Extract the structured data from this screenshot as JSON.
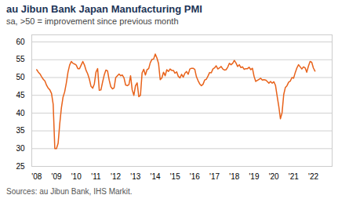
{
  "chart_data": {
    "type": "line",
    "title": "au Jibun Bank Japan Manufacturing PMI",
    "subtitle": "sa, >50 = improvement since previous month",
    "source": "Sources: au Jibun Bank, IHS Markit.",
    "color": "#E8621A",
    "grid": true,
    "xlim": [
      2007.75,
      2022.95
    ],
    "xticks": [
      {
        "value": 2008,
        "label": "'08"
      },
      {
        "value": 2009,
        "label": "'09"
      },
      {
        "value": 2010,
        "label": "'10"
      },
      {
        "value": 2011,
        "label": "'11"
      },
      {
        "value": 2012,
        "label": "'12"
      },
      {
        "value": 2013,
        "label": "'13"
      },
      {
        "value": 2014,
        "label": "'14"
      },
      {
        "value": 2015,
        "label": "'15"
      },
      {
        "value": 2016,
        "label": "'16"
      },
      {
        "value": 2017,
        "label": "'17"
      },
      {
        "value": 2018,
        "label": "'18"
      },
      {
        "value": 2019,
        "label": "'19"
      },
      {
        "value": 2020,
        "label": "'20"
      },
      {
        "value": 2021,
        "label": "'21"
      },
      {
        "value": 2022,
        "label": "'22"
      }
    ],
    "ylim": [
      25,
      62
    ],
    "yticks": [
      25,
      30,
      35,
      40,
      45,
      50,
      55,
      60
    ],
    "x": [
      2008,
      2008.0833333333333,
      2008.1666666666667,
      2008.25,
      2008.3333333333333,
      2008.4166666666667,
      2008.5,
      2008.5833333333333,
      2008.6666666666667,
      2008.75,
      2008.8333333333333,
      2008.9166666666667,
      2009,
      2009.0833333333333,
      2009.1666666666667,
      2009.25,
      2009.3333333333333,
      2009.4166666666667,
      2009.5,
      2009.5833333333333,
      2009.6666666666667,
      2009.75,
      2009.8333333333333,
      2009.9166666666667,
      2010,
      2010.0833333333333,
      2010.1666666666667,
      2010.25,
      2010.3333333333333,
      2010.4166666666667,
      2010.5,
      2010.5833333333333,
      2010.6666666666667,
      2010.75,
      2010.8333333333333,
      2010.9166666666667,
      2011,
      2011.0833333333333,
      2011.1666666666667,
      2011.25,
      2011.3333333333333,
      2011.4166666666667,
      2011.5,
      2011.5833333333333,
      2011.6666666666667,
      2011.75,
      2011.8333333333333,
      2011.9166666666667,
      2012,
      2012.0833333333333,
      2012.1666666666667,
      2012.25,
      2012.3333333333333,
      2012.4166666666667,
      2012.5,
      2012.5833333333333,
      2012.6666666666667,
      2012.75,
      2012.8333333333333,
      2012.9166666666667,
      2013,
      2013.0833333333333,
      2013.1666666666667,
      2013.25,
      2013.3333333333333,
      2013.4166666666667,
      2013.5,
      2013.5833333333333,
      2013.6666666666667,
      2013.75,
      2013.8333333333333,
      2013.9166666666667,
      2014,
      2014.0833333333333,
      2014.1666666666667,
      2014.25,
      2014.3333333333333,
      2014.4166666666667,
      2014.5,
      2014.5833333333333,
      2014.6666666666667,
      2014.75,
      2014.8333333333333,
      2014.9166666666667,
      2015,
      2015.0833333333333,
      2015.1666666666667,
      2015.25,
      2015.3333333333333,
      2015.4166666666667,
      2015.5,
      2015.5833333333333,
      2015.6666666666667,
      2015.75,
      2015.8333333333333,
      2015.9166666666667,
      2016,
      2016.0833333333333,
      2016.1666666666667,
      2016.25,
      2016.3333333333333,
      2016.4166666666667,
      2016.5,
      2016.5833333333333,
      2016.6666666666667,
      2016.75,
      2016.8333333333333,
      2016.9166666666667,
      2017,
      2017.0833333333333,
      2017.1666666666667,
      2017.25,
      2017.3333333333333,
      2017.4166666666667,
      2017.5,
      2017.5833333333333,
      2017.6666666666667,
      2017.75,
      2017.8333333333333,
      2017.9166666666667,
      2018,
      2018.0833333333333,
      2018.1666666666667,
      2018.25,
      2018.3333333333333,
      2018.4166666666667,
      2018.5,
      2018.5833333333333,
      2018.6666666666667,
      2018.75,
      2018.8333333333333,
      2018.9166666666667,
      2019,
      2019.0833333333333,
      2019.1666666666667,
      2019.25,
      2019.3333333333333,
      2019.4166666666667,
      2019.5,
      2019.5833333333333,
      2019.6666666666667,
      2019.75,
      2019.8333333333333,
      2019.9166666666667,
      2020,
      2020.0833333333333,
      2020.1666666666667,
      2020.25,
      2020.3333333333333,
      2020.4166666666667,
      2020.5,
      2020.5833333333333,
      2020.6666666666667,
      2020.75,
      2020.8333333333333,
      2020.9166666666667,
      2021,
      2021.0833333333333,
      2021.1666666666667,
      2021.25,
      2021.3333333333333,
      2021.4166666666667,
      2021.5,
      2021.5833333333333,
      2021.6666666666667,
      2021.75,
      2021.8333333333333,
      2021.9166666666667,
      2022,
      2022.0833333333333
    ],
    "values": [
      52.2,
      51.5,
      51.0,
      50.2,
      49.5,
      49.0,
      47.8,
      47.0,
      46.5,
      45.5,
      42.5,
      30.0,
      30.0,
      31.5,
      37.0,
      41.5,
      44.5,
      46.0,
      48.5,
      51.5,
      53.5,
      54.5,
      54.0,
      53.8,
      53.5,
      52.5,
      52.5,
      53.5,
      54.5,
      53.5,
      52.0,
      51.0,
      49.5,
      47.5,
      47.0,
      48.2,
      51.5,
      52.5,
      46.4,
      46.5,
      48.7,
      50.7,
      52.1,
      51.9,
      49.3,
      47.4,
      46.8,
      47.1,
      50.0,
      50.5,
      51.0,
      50.5,
      50.7,
      49.9,
      47.9,
      47.7,
      48.0,
      50.5,
      46.5,
      45.0,
      47.7,
      48.5,
      44.6,
      45.0,
      51.3,
      52.3,
      50.7,
      52.2,
      52.5,
      54.2,
      55.1,
      55.2,
      56.6,
      55.5,
      53.9,
      49.4,
      49.9,
      51.5,
      50.5,
      52.2,
      51.7,
      52.4,
      52.0,
      52.0,
      51.2,
      51.6,
      50.3,
      49.9,
      50.9,
      50.1,
      51.2,
      51.7,
      50.9,
      52.4,
      52.6,
      52.6,
      52.3,
      50.2,
      49.1,
      48.2,
      47.7,
      48.1,
      49.3,
      49.5,
      50.4,
      51.4,
      51.3,
      52.4,
      52.7,
      53.3,
      52.4,
      52.7,
      53.1,
      52.4,
      52.1,
      52.2,
      52.9,
      54.0,
      53.6,
      54.0,
      54.8,
      54.1,
      53.1,
      53.6,
      52.8,
      53.0,
      52.3,
      52.5,
      52.5,
      52.9,
      52.2,
      52.6,
      50.3,
      48.9,
      49.2,
      49.5,
      49.8,
      49.3,
      49.4,
      49.3,
      48.9,
      48.4,
      48.9,
      48.4,
      48.8,
      47.8,
      44.8,
      41.9,
      38.4,
      40.1,
      45.2,
      47.2,
      47.7,
      48.7,
      49.0,
      50.0,
      49.8,
      51.4,
      52.7,
      53.6,
      53.0,
      52.4,
      53.0,
      52.7,
      51.5,
      53.2,
      54.5,
      54.3,
      52.7,
      51.8
    ]
  }
}
